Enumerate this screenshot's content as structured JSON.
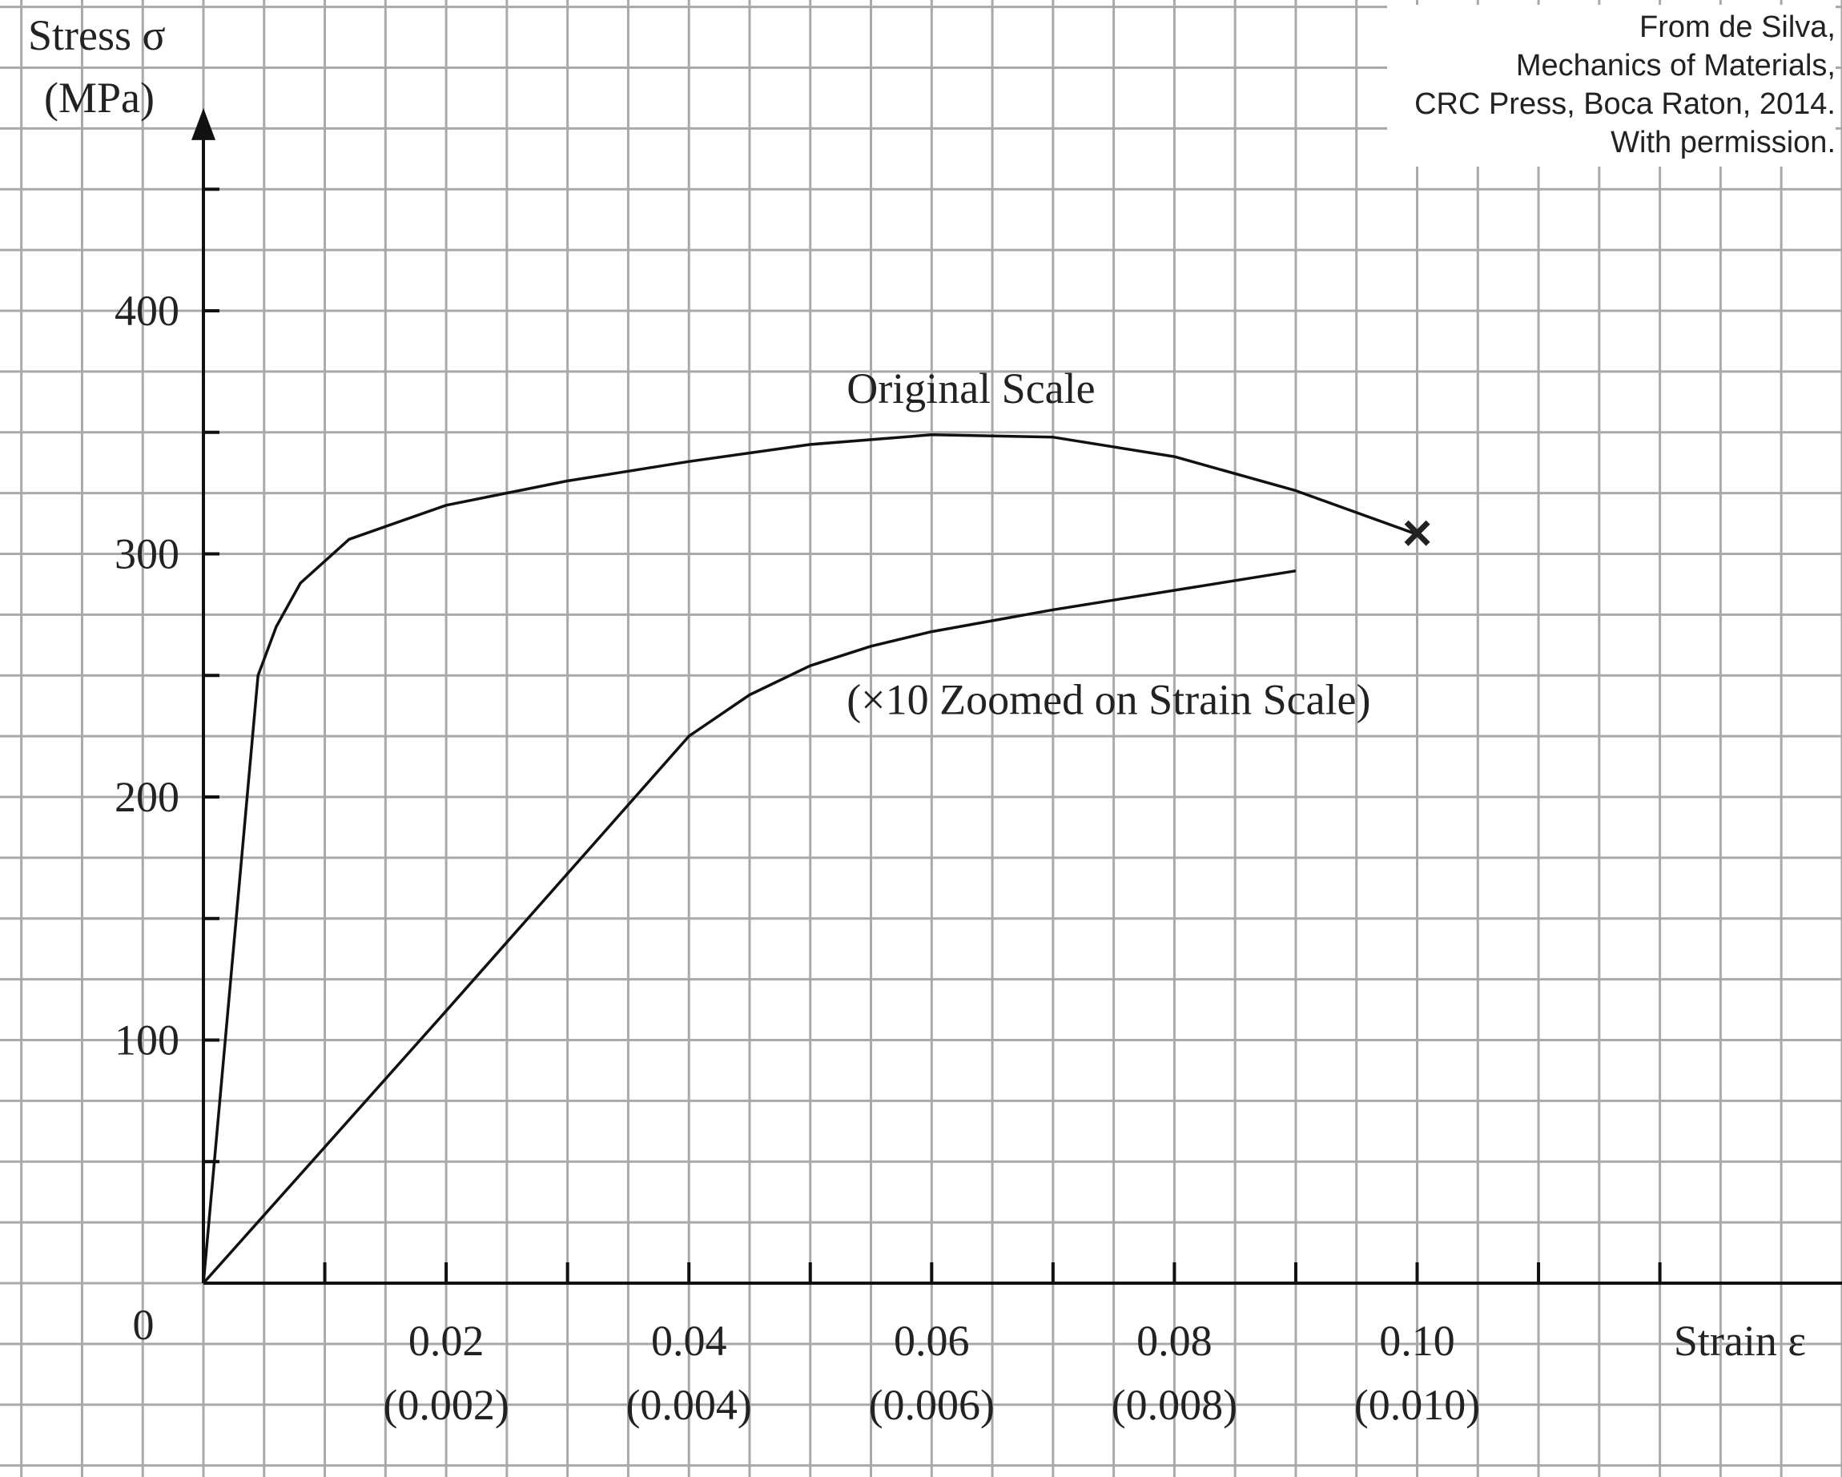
{
  "credit": {
    "lines": [
      "From de Silva,",
      "Mechanics of Materials,",
      "CRC Press, Boca Raton, 2014.",
      "With permission."
    ]
  },
  "colors": {
    "grid": "#a9a9a9",
    "axis": "#111111",
    "curve": "#111111",
    "background": "#ffffff"
  },
  "chart_data": {
    "type": "line",
    "title": "",
    "ylabel_line1": "Stress σ",
    "ylabel_line2": "(MPa)",
    "xlabel": "Strain ε",
    "origin_label": "0",
    "xlim": [
      0,
      0.13
    ],
    "ylim": [
      0,
      490
    ],
    "y_ticks": [
      100,
      200,
      300,
      400
    ],
    "y_tick_labels": [
      "100",
      "200",
      "300",
      "400"
    ],
    "x_ticks": [
      0.02,
      0.04,
      0.06,
      0.08,
      0.1
    ],
    "x_tick_labels": [
      "0.02",
      "0.04",
      "0.06",
      "0.08",
      "0.10"
    ],
    "x_tick_labels_zoomed": [
      "(0.002)",
      "(0.004)",
      "(0.006)",
      "(0.008)",
      "(0.010)"
    ],
    "grid": true,
    "series": [
      {
        "name": "Original Scale",
        "x": [
          0,
          0.0045,
          0.006,
          0.008,
          0.012,
          0.02,
          0.03,
          0.04,
          0.05,
          0.06,
          0.07,
          0.08,
          0.09,
          0.1
        ],
        "y": [
          0,
          250,
          270,
          288,
          306,
          320,
          330,
          338,
          345,
          349,
          348,
          340,
          326,
          308
        ],
        "end_marker": "×"
      },
      {
        "name": "(×10 Zoomed on Strain Scale)",
        "x": [
          0,
          0.02,
          0.04,
          0.045,
          0.05,
          0.055,
          0.06,
          0.07,
          0.08,
          0.09
        ],
        "y": [
          0,
          112,
          225,
          242,
          254,
          262,
          268,
          277,
          285,
          293
        ]
      }
    ]
  }
}
